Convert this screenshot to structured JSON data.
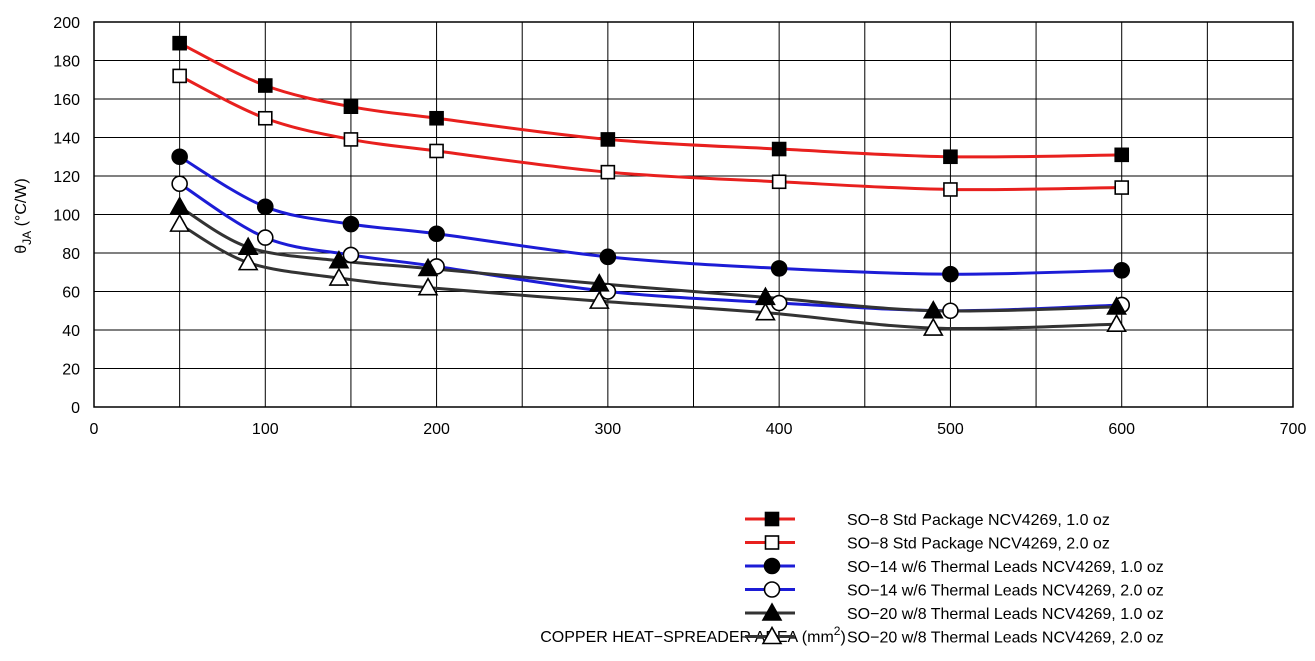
{
  "chart_data": {
    "type": "line",
    "title": "",
    "xlabel": "COPPER HEAT−SPREADER AREA (mm",
    "xlabel_sup": "2",
    "xlabel_end": ")",
    "ylabel_main": "θ",
    "ylabel_sub": "JA",
    "ylabel_rest": " (°C/W)",
    "xlim": [
      0,
      700
    ],
    "ylim": [
      0,
      200
    ],
    "x_ticks": [
      "0",
      "100",
      "200",
      "300",
      "400",
      "500",
      "600",
      "700"
    ],
    "y_ticks": [
      "0",
      "20",
      "40",
      "60",
      "80",
      "100",
      "120",
      "140",
      "160",
      "180",
      "200"
    ],
    "grid": true,
    "legend_position": "bottom-right",
    "series": [
      {
        "name": "SO−8 Std Package NCV4269, 1.0 oz",
        "color": "#e8201e",
        "marker": "square-filled",
        "x": [
          50,
          100,
          150,
          200,
          300,
          400,
          500,
          600
        ],
        "y": [
          189,
          167,
          156,
          150,
          139,
          134,
          130,
          131
        ]
      },
      {
        "name": "SO−8 Std Package NCV4269, 2.0 oz",
        "color": "#e8201e",
        "marker": "square-open",
        "x": [
          50,
          100,
          150,
          200,
          300,
          400,
          500,
          600
        ],
        "y": [
          172,
          150,
          139,
          133,
          122,
          117,
          113,
          114
        ]
      },
      {
        "name": "SO−14 w/6 Thermal Leads NCV4269, 1.0 oz",
        "color": "#1c1cd6",
        "marker": "circle-filled",
        "x": [
          50,
          100,
          150,
          200,
          300,
          400,
          500,
          600
        ],
        "y": [
          130,
          104,
          95,
          90,
          78,
          72,
          69,
          71
        ]
      },
      {
        "name": "SO−14 w/6 Thermal Leads NCV4269, 2.0 oz",
        "color": "#1c1cd6",
        "marker": "circle-open",
        "x": [
          50,
          100,
          150,
          200,
          300,
          400,
          500,
          600
        ],
        "y": [
          116,
          88,
          79,
          73,
          60,
          54,
          50,
          53
        ]
      },
      {
        "name": "SO−20 w/8 Thermal Leads NCV4269, 1.0 oz",
        "color": "#333333",
        "marker": "triangle-filled",
        "x": [
          50,
          90,
          143,
          195,
          295,
          392,
          490,
          597
        ],
        "y": [
          104,
          83,
          76,
          72,
          64,
          57,
          50,
          52
        ]
      },
      {
        "name": "SO−20 w/8 Thermal Leads NCV4269, 2.0 oz",
        "color": "#333333",
        "marker": "triangle-open",
        "x": [
          50,
          90,
          143,
          195,
          295,
          392,
          490,
          597
        ],
        "y": [
          95,
          75,
          67,
          62,
          55,
          49,
          41,
          43
        ]
      }
    ]
  }
}
